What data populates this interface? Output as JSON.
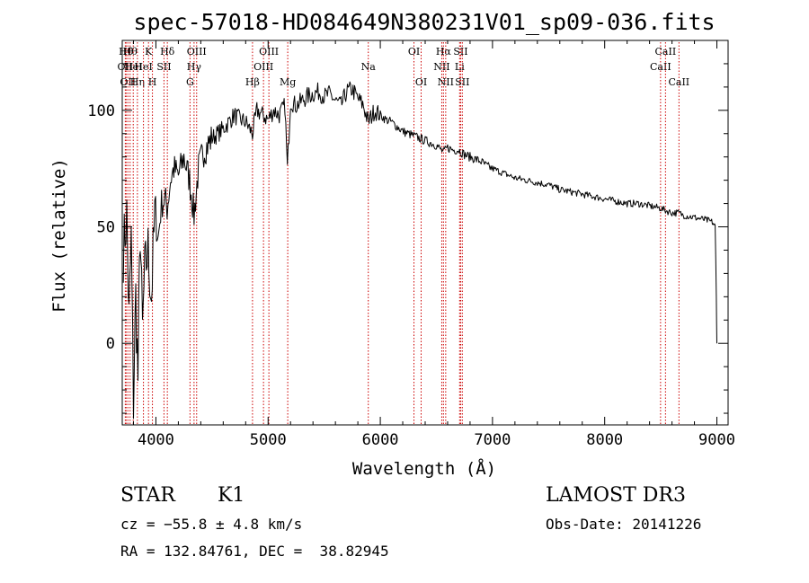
{
  "chart_data": {
    "type": "line",
    "title": "spec-57018-HD084649N380231V01_sp09-036.fits",
    "xlabel": "Wavelength (Å)",
    "ylabel": "Flux (relative)",
    "xlim": [
      3700,
      9100
    ],
    "ylim": [
      -35,
      130
    ],
    "xticks": [
      4000,
      5000,
      6000,
      7000,
      8000,
      9000
    ],
    "yticks": [
      0,
      50,
      100
    ],
    "grid": false,
    "series": [
      {
        "name": "spectrum",
        "color": "#000000",
        "x": [
          3710,
          3740,
          3760,
          3780,
          3800,
          3820,
          3840,
          3860,
          3880,
          3900,
          3930,
          3960,
          3990,
          4020,
          4050,
          4080,
          4100,
          4130,
          4160,
          4200,
          4250,
          4300,
          4340,
          4380,
          4420,
          4460,
          4500,
          4550,
          4600,
          4650,
          4700,
          4750,
          4800,
          4861,
          4900,
          4950,
          5000,
          5050,
          5100,
          5150,
          5172,
          5200,
          5250,
          5300,
          5350,
          5400,
          5450,
          5500,
          5550,
          5600,
          5650,
          5700,
          5750,
          5800,
          5850,
          5893,
          5950,
          6000,
          6050,
          6100,
          6150,
          6200,
          6250,
          6300,
          6350,
          6400,
          6450,
          6500,
          6563,
          6600,
          6650,
          6700,
          6750,
          6800,
          6850,
          6900,
          6950,
          7000,
          7100,
          7200,
          7300,
          7400,
          7500,
          7600,
          7700,
          7800,
          7900,
          8000,
          8100,
          8200,
          8300,
          8400,
          8498,
          8542,
          8600,
          8662,
          8700,
          8800,
          8900,
          8960,
          8985,
          8995,
          9000
        ],
        "y": [
          40,
          55,
          10,
          45,
          -25,
          20,
          -15,
          50,
          5,
          30,
          40,
          20,
          55,
          45,
          60,
          62,
          58,
          70,
          75,
          72,
          80,
          70,
          55,
          75,
          82,
          85,
          88,
          90,
          92,
          95,
          98,
          96,
          95,
          90,
          100,
          98,
          96,
          100,
          98,
          102,
          75,
          104,
          102,
          104,
          106,
          107,
          108,
          106,
          107,
          104,
          102,
          108,
          109,
          105,
          102,
          95,
          100,
          98,
          96,
          95,
          93,
          91,
          90,
          89,
          88,
          87,
          86,
          85,
          82,
          84,
          83,
          83,
          81,
          80,
          79,
          78,
          76,
          75,
          73,
          71,
          70,
          69,
          68,
          66,
          65,
          64,
          63,
          62,
          61,
          60,
          60,
          59,
          58,
          57,
          56,
          56,
          55,
          54,
          53,
          52,
          50,
          20,
          0
        ]
      }
    ],
    "lines": [
      {
        "wl": 3734,
        "name": "Hθ",
        "row": 1
      },
      {
        "wl": 3727,
        "name": "OII",
        "row": 2
      },
      {
        "wl": 3750,
        "name": "OII",
        "row": 3
      },
      {
        "wl": 3770,
        "name": "Hθ",
        "row": 1
      },
      {
        "wl": 3798,
        "name": "HeI",
        "row": 2
      },
      {
        "wl": 3835,
        "name": "Hη",
        "row": 3
      },
      {
        "wl": 3889,
        "name": "HeI",
        "row": 2
      },
      {
        "wl": 3934,
        "name": "K",
        "row": 1
      },
      {
        "wl": 3969,
        "name": "H",
        "row": 3
      },
      {
        "wl": 4072,
        "name": "SII",
        "row": 2
      },
      {
        "wl": 4102,
        "name": "Hδ",
        "row": 1
      },
      {
        "wl": 4304,
        "name": "G",
        "row": 3
      },
      {
        "wl": 4340,
        "name": "Hγ",
        "row": 2
      },
      {
        "wl": 4363,
        "name": "OIII",
        "row": 1
      },
      {
        "wl": 4861,
        "name": "Hβ",
        "row": 3
      },
      {
        "wl": 4959,
        "name": "OIII",
        "row": 2
      },
      {
        "wl": 5007,
        "name": "OIII",
        "row": 1
      },
      {
        "wl": 5175,
        "name": "Mg",
        "row": 3
      },
      {
        "wl": 5893,
        "name": "Na",
        "row": 2
      },
      {
        "wl": 6300,
        "name": "OI",
        "row": 1
      },
      {
        "wl": 6364,
        "name": "OI",
        "row": 3
      },
      {
        "wl": 6548,
        "name": "NII",
        "row": 2
      },
      {
        "wl": 6563,
        "name": "Hα",
        "row": 1
      },
      {
        "wl": 6583,
        "name": "NII",
        "row": 3
      },
      {
        "wl": 6707,
        "name": "Li",
        "row": 2
      },
      {
        "wl": 6716,
        "name": "SII",
        "row": 1
      },
      {
        "wl": 6731,
        "name": "SII",
        "row": 3
      },
      {
        "wl": 8498,
        "name": "CaII",
        "row": 2
      },
      {
        "wl": 8542,
        "name": "CaII",
        "row": 1
      },
      {
        "wl": 8662,
        "name": "CaII",
        "row": 3
      }
    ],
    "line_color": "#cc0000",
    "annotations": {
      "star_class": "STAR",
      "subclass": "K1",
      "survey": "LAMOST DR3",
      "cz": "cz = −55.8 ± 4.8 km/s",
      "obs_date": "Obs-Date: 20141226",
      "coords": "RA = 132.84761, DEC =  38.82945"
    }
  }
}
